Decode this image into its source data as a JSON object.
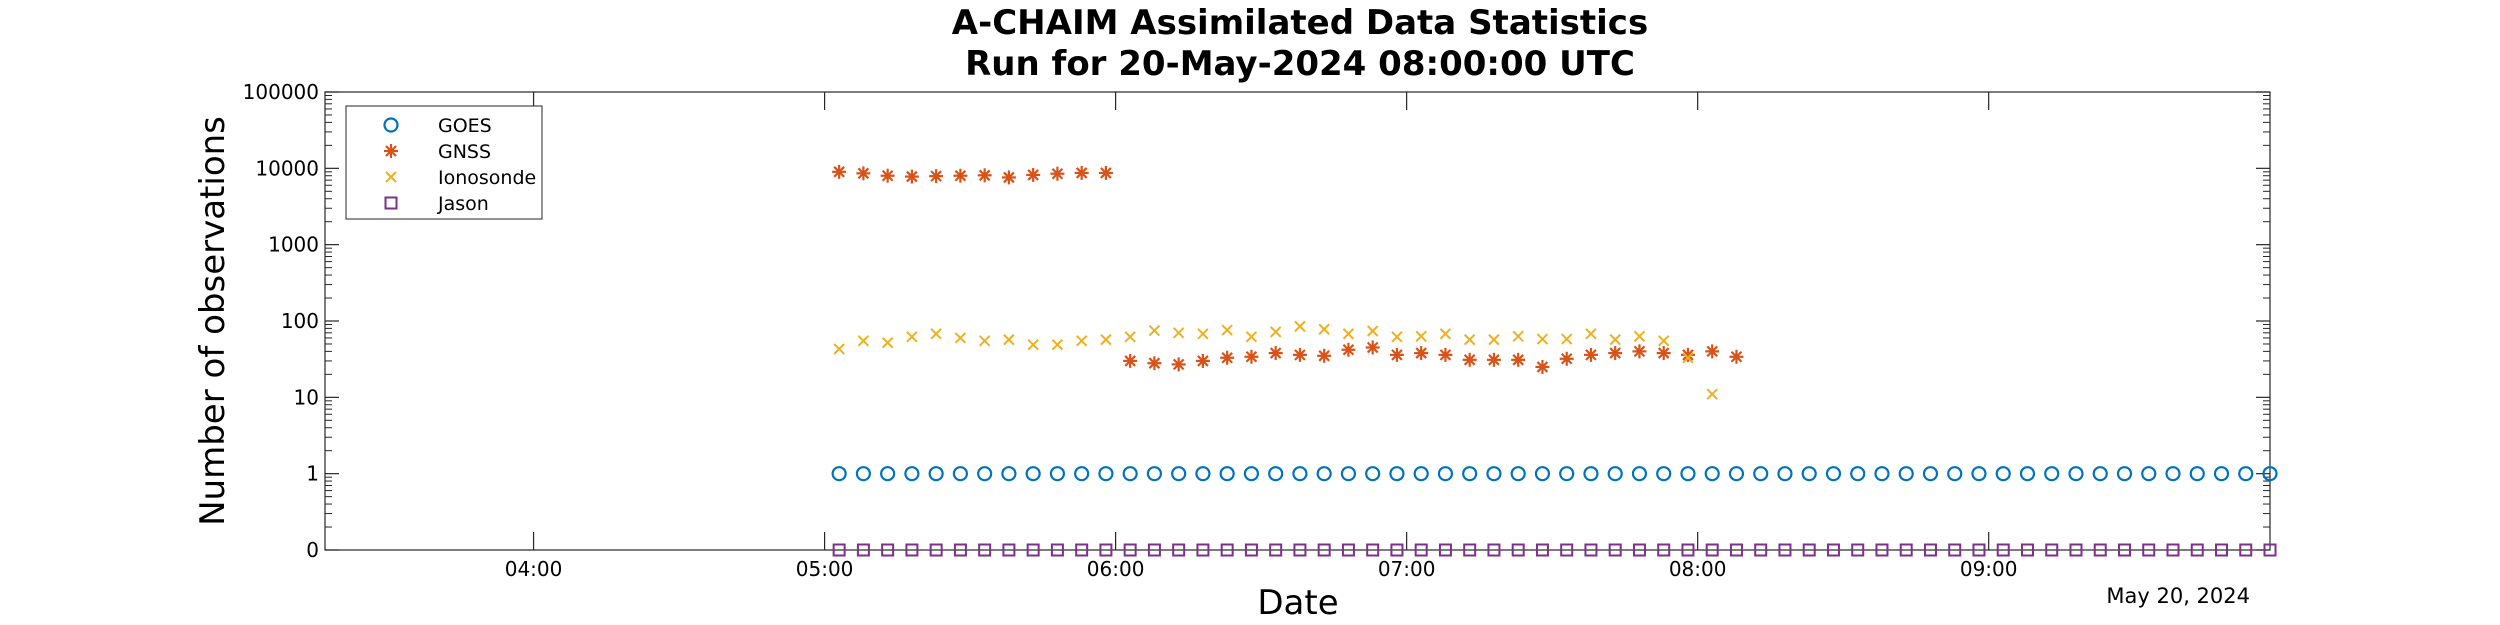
{
  "chart_data": {
    "type": "scatter",
    "title_line1": "A-CHAIM Assimilated Data Statistics",
    "title_line2": "Run for 20-May-2024 08:00:00 UTC",
    "xlabel": "Date",
    "ylabel": "Number of observations",
    "x_date_note": "May 20, 2024",
    "y_scale": "log",
    "ylim": [
      0,
      100000
    ],
    "y_ticks": [
      "0",
      "1",
      "10",
      "100",
      "1000",
      "10000",
      "100000"
    ],
    "xlim": [
      "03:17",
      "09:58"
    ],
    "x_ticks": [
      "04:00",
      "05:00",
      "06:00",
      "07:00",
      "08:00",
      "09:00"
    ],
    "grid": false,
    "legend_position": "top-left",
    "series": [
      {
        "name": "GOES",
        "marker": "circle",
        "color": "#0072BD",
        "points": [
          [
            "05:03",
            1
          ],
          [
            "05:08",
            1
          ],
          [
            "05:13",
            1
          ],
          [
            "05:18",
            1
          ],
          [
            "05:23",
            1
          ],
          [
            "05:28",
            1
          ],
          [
            "05:33",
            1
          ],
          [
            "05:38",
            1
          ],
          [
            "05:43",
            1
          ],
          [
            "05:48",
            1
          ],
          [
            "05:53",
            1
          ],
          [
            "05:58",
            1
          ],
          [
            "06:03",
            1
          ],
          [
            "06:08",
            1
          ],
          [
            "06:13",
            1
          ],
          [
            "06:18",
            1
          ],
          [
            "06:23",
            1
          ],
          [
            "06:28",
            1
          ],
          [
            "06:33",
            1
          ],
          [
            "06:38",
            1
          ],
          [
            "06:43",
            1
          ],
          [
            "06:48",
            1
          ],
          [
            "06:53",
            1
          ],
          [
            "06:58",
            1
          ],
          [
            "07:03",
            1
          ],
          [
            "07:08",
            1
          ],
          [
            "07:13",
            1
          ],
          [
            "07:18",
            1
          ],
          [
            "07:23",
            1
          ],
          [
            "07:28",
            1
          ],
          [
            "07:33",
            1
          ],
          [
            "07:38",
            1
          ],
          [
            "07:43",
            1
          ],
          [
            "07:48",
            1
          ],
          [
            "07:53",
            1
          ],
          [
            "07:58",
            1
          ],
          [
            "08:03",
            1
          ],
          [
            "08:08",
            1
          ],
          [
            "08:13",
            1
          ],
          [
            "08:18",
            1
          ],
          [
            "08:23",
            1
          ],
          [
            "08:28",
            1
          ],
          [
            "08:33",
            1
          ],
          [
            "08:38",
            1
          ],
          [
            "08:43",
            1
          ],
          [
            "08:48",
            1
          ],
          [
            "08:53",
            1
          ],
          [
            "08:58",
            1
          ],
          [
            "09:03",
            1
          ],
          [
            "09:08",
            1
          ],
          [
            "09:13",
            1
          ],
          [
            "09:18",
            1
          ],
          [
            "09:23",
            1
          ],
          [
            "09:28",
            1
          ],
          [
            "09:33",
            1
          ],
          [
            "09:38",
            1
          ],
          [
            "09:43",
            1
          ],
          [
            "09:48",
            1
          ],
          [
            "09:53",
            1
          ],
          [
            "09:58",
            1
          ]
        ]
      },
      {
        "name": "GNSS",
        "marker": "asterisk",
        "color": "#D95319",
        "points": [
          [
            "05:03",
            9000
          ],
          [
            "05:08",
            8600
          ],
          [
            "05:13",
            8000
          ],
          [
            "05:18",
            7800
          ],
          [
            "05:23",
            7900
          ],
          [
            "05:28",
            8000
          ],
          [
            "05:33",
            8100
          ],
          [
            "05:38",
            7600
          ],
          [
            "05:43",
            8200
          ],
          [
            "05:48",
            8500
          ],
          [
            "05:53",
            8700
          ],
          [
            "05:58",
            8700
          ],
          [
            "06:03",
            30
          ],
          [
            "06:08",
            28
          ],
          [
            "06:13",
            27
          ],
          [
            "06:18",
            30
          ],
          [
            "06:23",
            33
          ],
          [
            "06:28",
            34
          ],
          [
            "06:33",
            38
          ],
          [
            "06:38",
            36
          ],
          [
            "06:43",
            35
          ],
          [
            "06:48",
            42
          ],
          [
            "06:53",
            45
          ],
          [
            "06:58",
            36
          ],
          [
            "07:03",
            38
          ],
          [
            "07:08",
            36
          ],
          [
            "07:13",
            31
          ],
          [
            "07:18",
            31
          ],
          [
            "07:23",
            31
          ],
          [
            "07:28",
            25
          ],
          [
            "07:33",
            32
          ],
          [
            "07:38",
            36
          ],
          [
            "07:43",
            38
          ],
          [
            "07:48",
            40
          ],
          [
            "07:53",
            38
          ],
          [
            "07:58",
            36
          ],
          [
            "08:03",
            40
          ],
          [
            "08:08",
            34
          ]
        ]
      },
      {
        "name": "Ionosonde",
        "marker": "x",
        "color": "#EDB120",
        "points": [
          [
            "05:03",
            43
          ],
          [
            "05:08",
            55
          ],
          [
            "05:13",
            52
          ],
          [
            "05:18",
            62
          ],
          [
            "05:23",
            68
          ],
          [
            "05:28",
            60
          ],
          [
            "05:33",
            55
          ],
          [
            "05:38",
            57
          ],
          [
            "05:43",
            49
          ],
          [
            "05:48",
            49
          ],
          [
            "05:53",
            55
          ],
          [
            "05:58",
            57
          ],
          [
            "06:03",
            62
          ],
          [
            "06:08",
            75
          ],
          [
            "06:13",
            70
          ],
          [
            "06:18",
            68
          ],
          [
            "06:23",
            76
          ],
          [
            "06:28",
            62
          ],
          [
            "06:33",
            72
          ],
          [
            "06:38",
            85
          ],
          [
            "06:43",
            78
          ],
          [
            "06:48",
            68
          ],
          [
            "06:53",
            74
          ],
          [
            "06:58",
            62
          ],
          [
            "07:03",
            63
          ],
          [
            "07:08",
            68
          ],
          [
            "07:13",
            57
          ],
          [
            "07:18",
            57
          ],
          [
            "07:23",
            63
          ],
          [
            "07:28",
            58
          ],
          [
            "07:33",
            58
          ],
          [
            "07:38",
            68
          ],
          [
            "07:43",
            57
          ],
          [
            "07:48",
            63
          ],
          [
            "07:53",
            55
          ],
          [
            "07:58",
            33
          ],
          [
            "08:03",
            11
          ]
        ]
      },
      {
        "name": "Jason",
        "marker": "square",
        "color": "#7E2F8E",
        "points": [
          [
            "05:03",
            0
          ],
          [
            "05:08",
            0
          ],
          [
            "05:13",
            0
          ],
          [
            "05:18",
            0
          ],
          [
            "05:23",
            0
          ],
          [
            "05:28",
            0
          ],
          [
            "05:33",
            0
          ],
          [
            "05:38",
            0
          ],
          [
            "05:43",
            0
          ],
          [
            "05:48",
            0
          ],
          [
            "05:53",
            0
          ],
          [
            "05:58",
            0
          ],
          [
            "06:03",
            0
          ],
          [
            "06:08",
            0
          ],
          [
            "06:13",
            0
          ],
          [
            "06:18",
            0
          ],
          [
            "06:23",
            0
          ],
          [
            "06:28",
            0
          ],
          [
            "06:33",
            0
          ],
          [
            "06:38",
            0
          ],
          [
            "06:43",
            0
          ],
          [
            "06:48",
            0
          ],
          [
            "06:53",
            0
          ],
          [
            "06:58",
            0
          ],
          [
            "07:03",
            0
          ],
          [
            "07:08",
            0
          ],
          [
            "07:13",
            0
          ],
          [
            "07:18",
            0
          ],
          [
            "07:23",
            0
          ],
          [
            "07:28",
            0
          ],
          [
            "07:33",
            0
          ],
          [
            "07:38",
            0
          ],
          [
            "07:43",
            0
          ],
          [
            "07:48",
            0
          ],
          [
            "07:53",
            0
          ],
          [
            "07:58",
            0
          ],
          [
            "08:03",
            0
          ],
          [
            "08:08",
            0
          ],
          [
            "08:13",
            0
          ],
          [
            "08:18",
            0
          ],
          [
            "08:23",
            0
          ],
          [
            "08:28",
            0
          ],
          [
            "08:33",
            0
          ],
          [
            "08:38",
            0
          ],
          [
            "08:43",
            0
          ],
          [
            "08:48",
            0
          ],
          [
            "08:53",
            0
          ],
          [
            "08:58",
            0
          ],
          [
            "09:03",
            0
          ],
          [
            "09:08",
            0
          ],
          [
            "09:13",
            0
          ],
          [
            "09:18",
            0
          ],
          [
            "09:23",
            0
          ],
          [
            "09:28",
            0
          ],
          [
            "09:33",
            0
          ],
          [
            "09:38",
            0
          ],
          [
            "09:43",
            0
          ],
          [
            "09:48",
            0
          ],
          [
            "09:53",
            0
          ],
          [
            "09:58",
            0
          ]
        ]
      }
    ]
  }
}
